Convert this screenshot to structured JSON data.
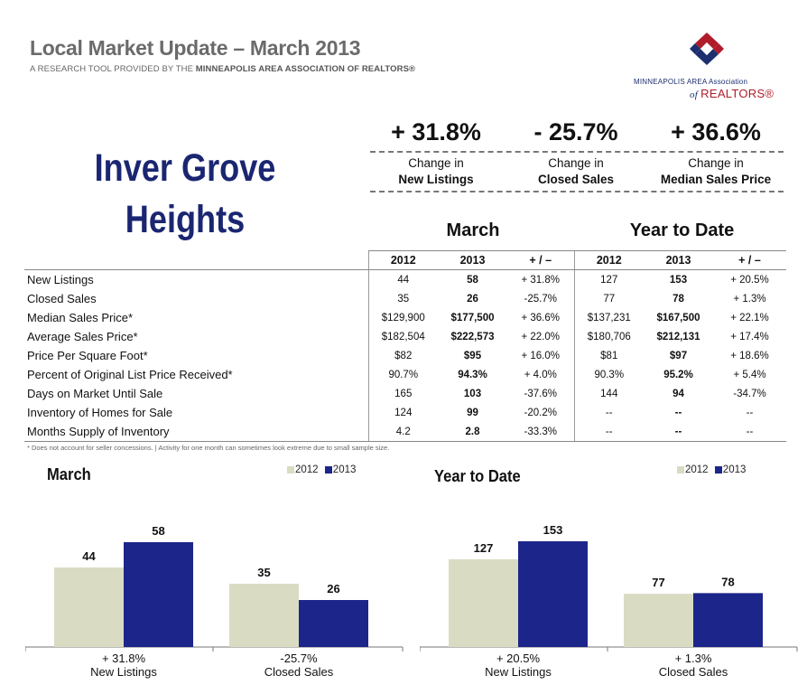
{
  "header": {
    "title": "Local Market Update – March 2013",
    "subtitle_prefix": "A RESEARCH TOOL PROVIDED BY THE",
    "subtitle_org": "MINNEAPOLIS AREA ASSOCIATION OF REALTORS®",
    "logo_line1": "MINNEAPOLIS AREA Association",
    "logo_of": "of",
    "logo_line2": "REALTORS®"
  },
  "city": {
    "line1": "Inver Grove",
    "line2": "Heights"
  },
  "kpis": [
    {
      "value": "+ 31.8%",
      "label1": "Change in",
      "label2": "New Listings"
    },
    {
      "value": "- 25.7%",
      "label1": "Change in",
      "label2": "Closed Sales"
    },
    {
      "value": "+ 36.6%",
      "label1": "Change in",
      "label2": "Median Sales Price"
    }
  ],
  "table": {
    "group_march": "March",
    "group_ytd": "Year to Date",
    "col_2012": "2012",
    "col_2013": "2013",
    "col_change": "+ / –",
    "rows": [
      {
        "label": "New Listings",
        "m2012": "44",
        "m2013": "58",
        "mchg": "+ 31.8%",
        "y2012": "127",
        "y2013": "153",
        "ychg": "+ 20.5%"
      },
      {
        "label": "Closed Sales",
        "m2012": "35",
        "m2013": "26",
        "mchg": "-25.7%",
        "y2012": "77",
        "y2013": "78",
        "ychg": "+ 1.3%"
      },
      {
        "label": "Median Sales Price*",
        "m2012": "$129,900",
        "m2013": "$177,500",
        "mchg": "+ 36.6%",
        "y2012": "$137,231",
        "y2013": "$167,500",
        "ychg": "+ 22.1%"
      },
      {
        "label": "Average Sales Price*",
        "m2012": "$182,504",
        "m2013": "$222,573",
        "mchg": "+ 22.0%",
        "y2012": "$180,706",
        "y2013": "$212,131",
        "ychg": "+ 17.4%"
      },
      {
        "label": "Price Per Square Foot*",
        "m2012": "$82",
        "m2013": "$95",
        "mchg": "+ 16.0%",
        "y2012": "$81",
        "y2013": "$97",
        "ychg": "+ 18.6%"
      },
      {
        "label": "Percent of Original List Price Received*",
        "m2012": "90.7%",
        "m2013": "94.3%",
        "mchg": "+ 4.0%",
        "y2012": "90.3%",
        "y2013": "95.2%",
        "ychg": "+ 5.4%"
      },
      {
        "label": "Days on Market Until Sale",
        "m2012": "165",
        "m2013": "103",
        "mchg": "-37.6%",
        "y2012": "144",
        "y2013": "94",
        "ychg": "-34.7%"
      },
      {
        "label": "Inventory of Homes for Sale",
        "m2012": "124",
        "m2013": "99",
        "mchg": "-20.2%",
        "y2012": "--",
        "y2013": "--",
        "ychg": "--"
      },
      {
        "label": "Months Supply of Inventory",
        "m2012": "4.2",
        "m2013": "2.8",
        "mchg": "-33.3%",
        "y2012": "--",
        "y2013": "--",
        "ychg": "--"
      }
    ]
  },
  "footnote": "* Does not account for seller concessions. | Activity for one month can sometimes look extreme due to small sample size.",
  "colors": {
    "c2012": "#d9dcc3",
    "c2013": "#1c2589",
    "title_gray": "#6b6b6b",
    "city_blue": "#1a2671"
  },
  "chart_data": [
    {
      "type": "bar",
      "title": "March",
      "legend": [
        "2012",
        "2013"
      ],
      "categories": [
        "New Listings",
        "Closed Sales"
      ],
      "change_labels": [
        "+ 31.8%",
        "-25.7%"
      ],
      "series": [
        {
          "name": "2012",
          "values": [
            44,
            35
          ]
        },
        {
          "name": "2013",
          "values": [
            58,
            26
          ]
        }
      ],
      "ylim": [
        0,
        65
      ]
    },
    {
      "type": "bar",
      "title": "Year to Date",
      "legend": [
        "2012",
        "2013"
      ],
      "categories": [
        "New Listings",
        "Closed Sales"
      ],
      "change_labels": [
        "+ 20.5%",
        "+ 1.3%"
      ],
      "series": [
        {
          "name": "2012",
          "values": [
            127,
            77
          ]
        },
        {
          "name": "2013",
          "values": [
            153,
            78
          ]
        }
      ],
      "ylim": [
        0,
        170
      ]
    }
  ]
}
